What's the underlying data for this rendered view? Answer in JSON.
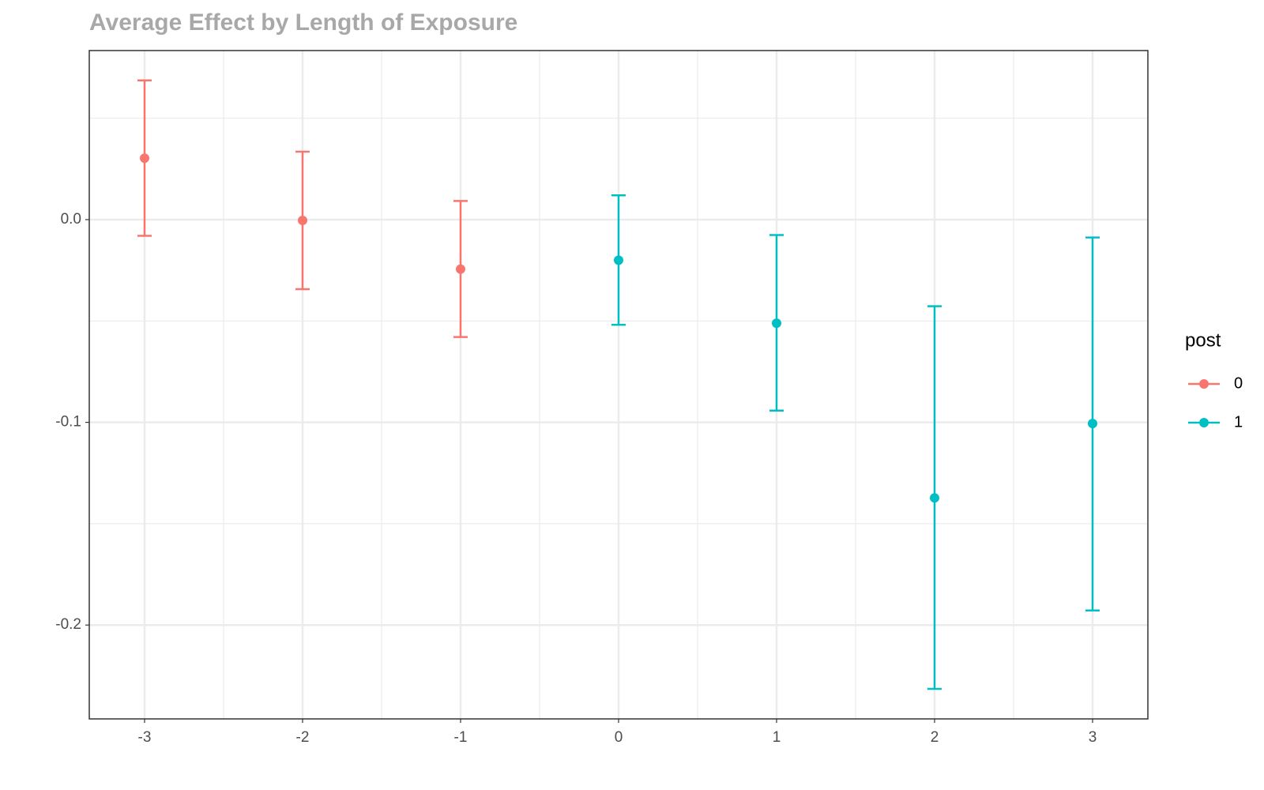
{
  "chart_data": {
    "type": "errorbar",
    "title": "Average Effect by Length of Exposure",
    "xlim": [
      -3.35,
      3.35
    ],
    "xticks": [
      -3,
      -2,
      -1,
      0,
      1,
      2,
      3
    ],
    "x_minor_gridlines": [
      -2.5,
      -1.5,
      -0.5,
      0.5,
      1.5,
      2.5
    ],
    "ylim": [
      -0.2463,
      0.0834
    ],
    "yticks": [
      {
        "value": 0,
        "label": "0.0"
      },
      -0.1,
      -0.2
    ],
    "y_minor_gridlines": [
      0.05,
      -0.05,
      -0.15
    ],
    "grid": true,
    "legend_title": "post",
    "legend_position": "right",
    "series": [
      {
        "name": "0",
        "color": "#F8766D",
        "x": [
          -3,
          -2,
          -1
        ],
        "values": [
          0.0303,
          -0.0004,
          -0.0244
        ],
        "lower": [
          -0.008,
          -0.0343,
          -0.0579
        ],
        "upper": [
          0.0687,
          0.0335,
          0.0092
        ]
      },
      {
        "name": "1",
        "color": "#00BFC4",
        "x": [
          0,
          1,
          2,
          3
        ],
        "values": [
          -0.02,
          -0.0511,
          -0.1373,
          -0.1006
        ],
        "lower": [
          -0.0519,
          -0.0942,
          -0.2315,
          -0.1928
        ],
        "upper": [
          0.012,
          -0.0076,
          -0.0427,
          -0.0088
        ]
      }
    ]
  }
}
